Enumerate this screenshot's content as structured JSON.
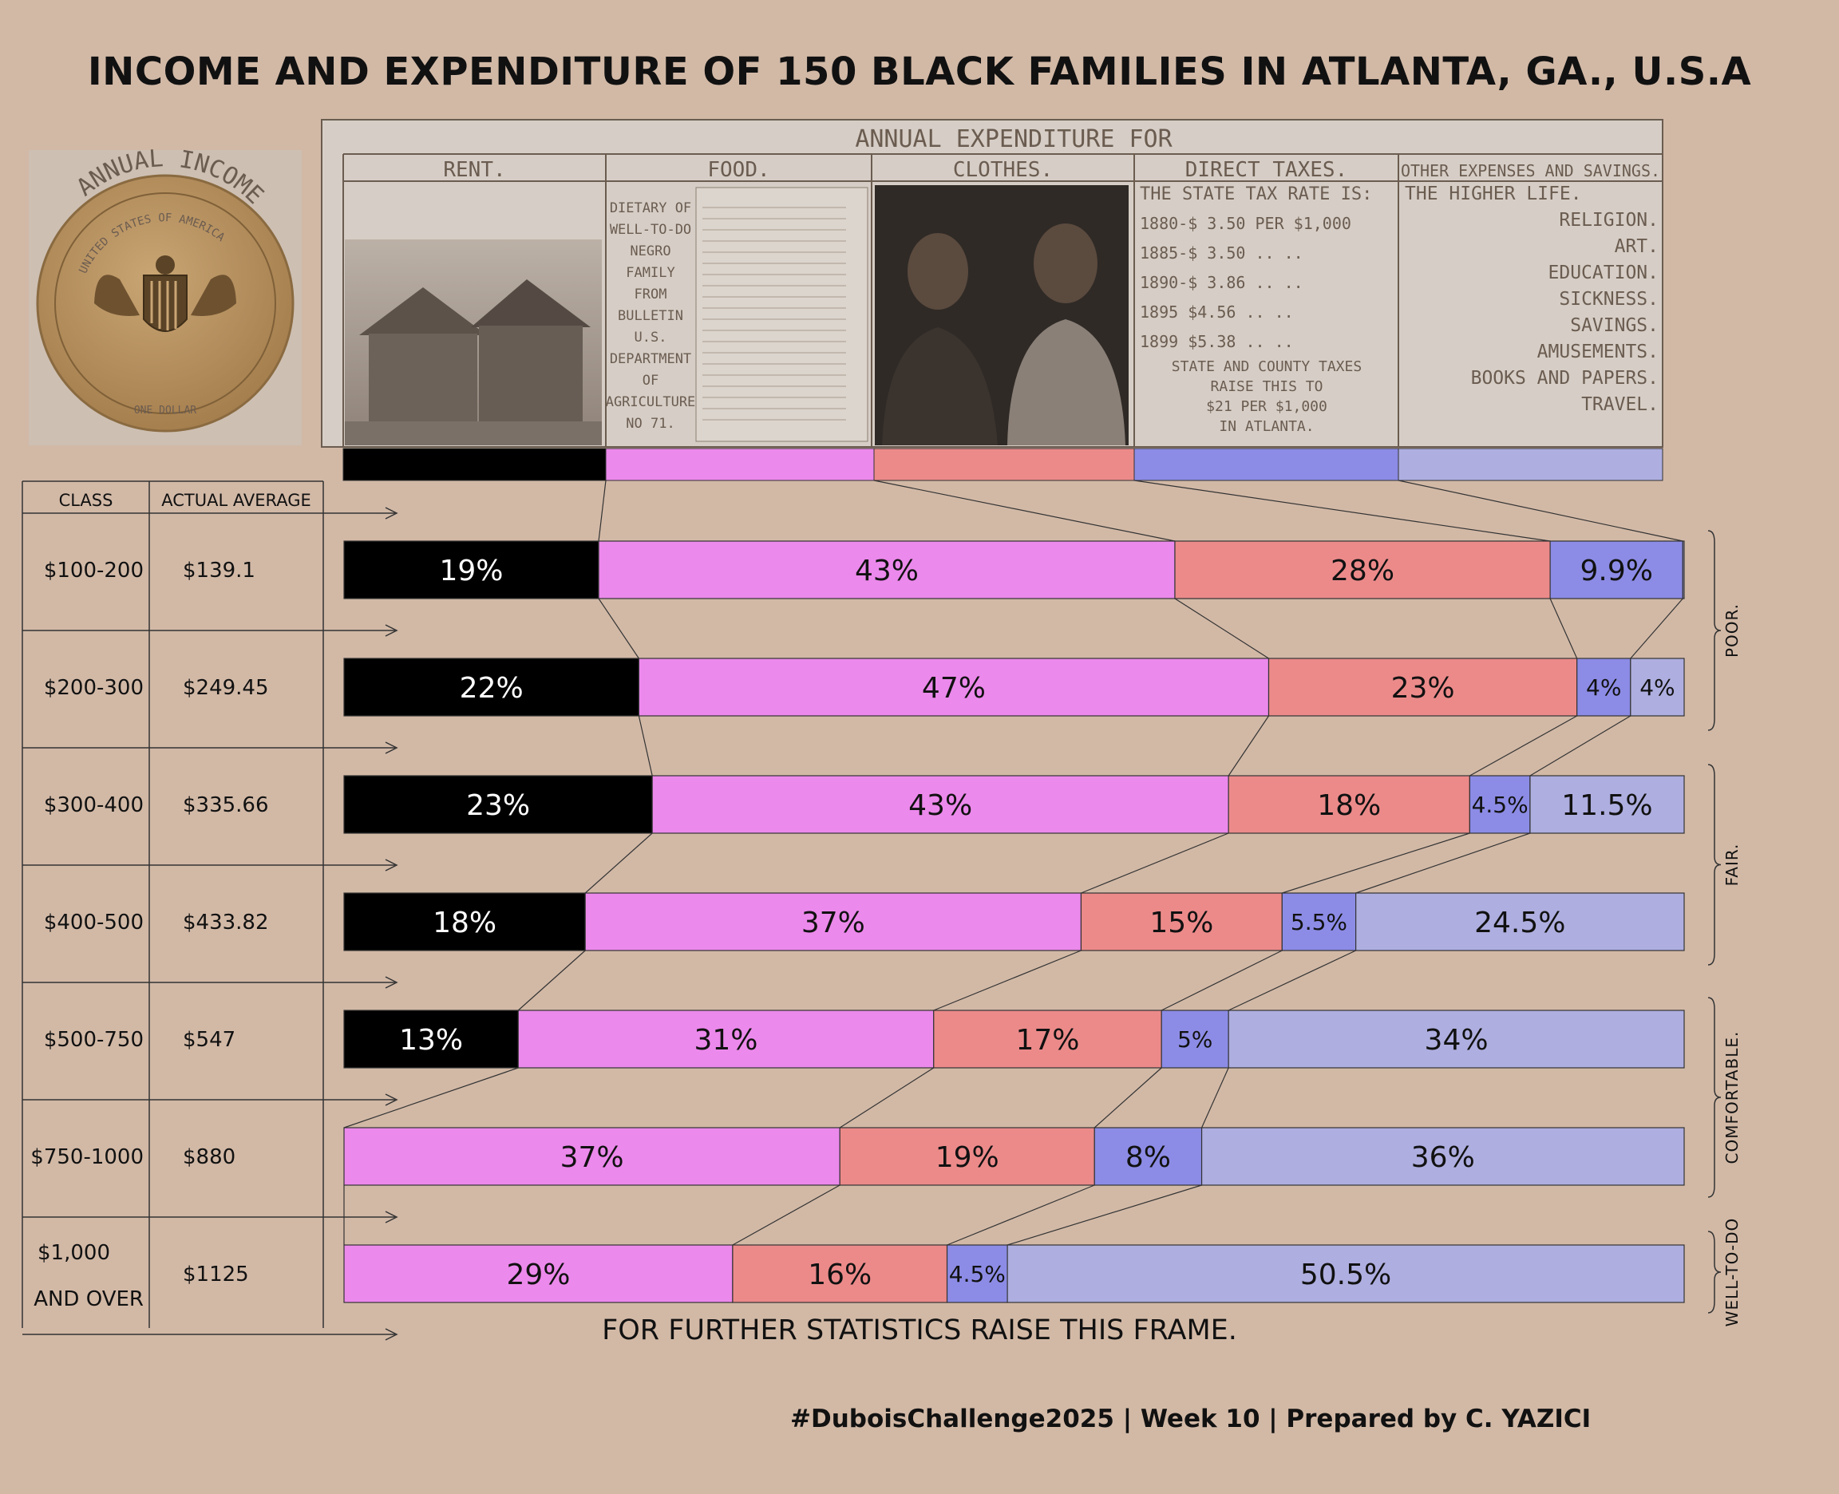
{
  "title": "INCOME AND EXPENDITURE OF 150 BLACK FAMILIES IN ATLANTA, GA., U.S.A",
  "footer": "#DuboisChallenge2025 | Week 10 | Prepared by C. YAZICI",
  "note": "FOR FURTHER STATISTICS RAISE THIS FRAME.",
  "table": {
    "header_class": "CLASS",
    "header_average": "ACTUAL AVERAGE"
  },
  "coin": {
    "arc_text": "ANNUAL INCOME.",
    "ring_text": "UNITED STATES OF AMERICA",
    "bottom_text": "ONE DOLLAR"
  },
  "photo_panel": {
    "header": "ANNUAL EXPENDITURE FOR",
    "columns": [
      "RENT.",
      "FOOD.",
      "CLOTHES.",
      "DIRECT TAXES.",
      "OTHER EXPENSES AND SAVINGS."
    ],
    "food_text": [
      "DIETARY OF",
      "WELL-TO-DO",
      "NEGRO",
      "FAMILY",
      "FROM",
      "BULLETIN",
      "U.S.",
      "DEPARTMENT",
      "OF",
      "AGRICULTURE",
      "NO 71."
    ],
    "tax_text": [
      "THE STATE TAX RATE IS:",
      "1880-$ 3.50  PER  $1,000",
      "1885-$ 3.50   ..      ..",
      "1890-$ 3.86   ..      ..",
      "1895  $4.56   ..      ..",
      "1899  $5.38   ..      ..",
      "STATE AND COUNTY TAXES",
      "RAISE THIS TO",
      "$21 PER $1,000",
      "IN ATLANTA."
    ],
    "other_text": [
      "THE HIGHER LIFE.",
      "RELIGION.",
      "ART.",
      "EDUCATION.",
      "SICKNESS.",
      "SAVINGS.",
      "AMUSEMENTS.",
      "BOOKS AND PAPERS.",
      "TRAVEL."
    ]
  },
  "groups": [
    "POOR.",
    "FAIR.",
    "COMFORTABLE.",
    "WELL-TO-DO"
  ],
  "colors": {
    "rent": "#000000",
    "food": "#ec89ec",
    "clothes": "#ec8a8a",
    "taxes": "#8c8ce6",
    "other": "#aeaee0",
    "background": "#d2b9a6"
  },
  "chart_data": {
    "type": "bar",
    "orientation": "horizontal",
    "stacked": "percent",
    "categories": [
      "$100-200",
      "$200-300",
      "$300-400",
      "$400-500",
      "$500-750",
      "$750-1000",
      "$1,000 AND OVER"
    ],
    "average": [
      "$139.1",
      "$249.45",
      "$335.66",
      "$433.82",
      "$547",
      "$880",
      "$1125"
    ],
    "series": [
      {
        "values": [
          19,
          22,
          23,
          18,
          13,
          0,
          0
        ],
        "labels": [
          "19%",
          "22%",
          "23%",
          "18%",
          "13%",
          "",
          ""
        ]
      },
      {
        "values": [
          43,
          47,
          43,
          37,
          31,
          37,
          29
        ],
        "labels": [
          "43%",
          "47%",
          "43%",
          "37%",
          "31%",
          "37%",
          "29%"
        ]
      },
      {
        "values": [
          28,
          23,
          18,
          15,
          17,
          19,
          16
        ],
        "labels": [
          "28%",
          "23%",
          "18%",
          "15%",
          "17%",
          "19%",
          "16%"
        ]
      },
      {
        "values": [
          9.9,
          4,
          4.5,
          5.5,
          5,
          8,
          4.5
        ],
        "labels": [
          "9.9%",
          "4%",
          "4.5%",
          "5.5%",
          "5%",
          "8%",
          "4.5%"
        ]
      },
      {
        "values": [
          0.1,
          4,
          11.5,
          24.5,
          34,
          36,
          50.5
        ],
        "labels": [
          "",
          "4%",
          "11.5%",
          "24.5%",
          "34%",
          "36%",
          "50.5%"
        ]
      }
    ]
  }
}
